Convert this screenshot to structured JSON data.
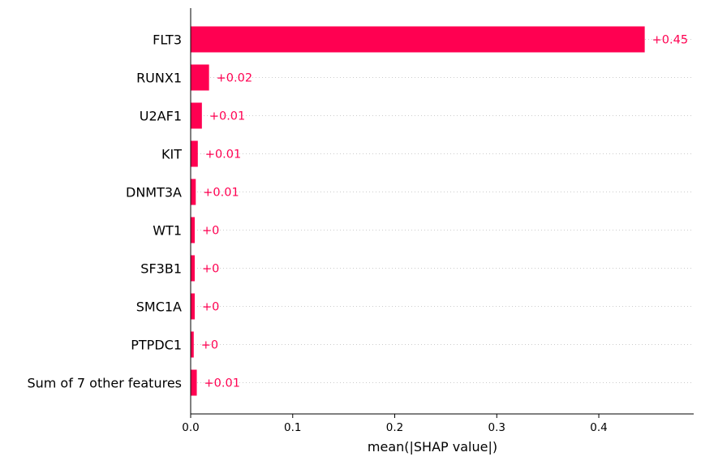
{
  "chart_data": {
    "type": "bar",
    "orientation": "horizontal",
    "categories": [
      "FLT3",
      "RUNX1",
      "U2AF1",
      "KIT",
      "DNMT3A",
      "WT1",
      "SF3B1",
      "SMC1A",
      "PTPDC1",
      "Sum of 7 other features"
    ],
    "values": [
      0.445,
      0.018,
      0.011,
      0.007,
      0.005,
      0.004,
      0.004,
      0.004,
      0.003,
      0.006
    ],
    "value_labels": [
      "+0.45",
      "+0.02",
      "+0.01",
      "+0.01",
      "+0.01",
      "+0",
      "+0",
      "+0",
      "+0",
      "+0.01"
    ],
    "xlabel": "mean(|SHAP value|)",
    "ylabel": "",
    "xlim": [
      0,
      0.493
    ],
    "xticks": [
      0.0,
      0.1,
      0.2,
      0.3,
      0.4
    ],
    "xtick_labels": [
      "0.0",
      "0.1",
      "0.2",
      "0.3",
      "0.4"
    ],
    "bar_color": "#ff0051",
    "grid": "dotted horizontal row guides",
    "legend": "none"
  }
}
